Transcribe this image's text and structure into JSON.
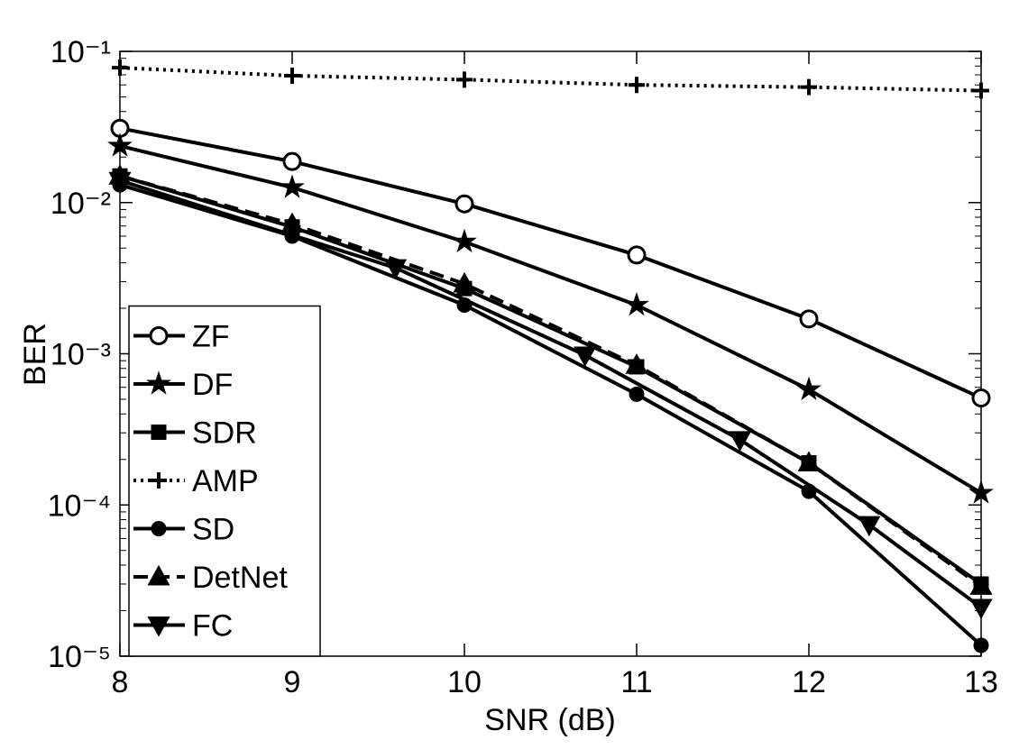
{
  "chart_data": {
    "type": "line",
    "x_label": "SNR (dB)",
    "y_label": "BER",
    "x": [
      8,
      9,
      10,
      11,
      12,
      13
    ],
    "xlim": [
      8,
      13
    ],
    "xticks": [
      8,
      9,
      10,
      11,
      12,
      13
    ],
    "ylim": [
      1e-05,
      0.1
    ],
    "y_log": true,
    "yticks": [
      {
        "value": 1e-05,
        "label": "10⁻⁵"
      },
      {
        "value": 0.0001,
        "label": "10⁻⁴"
      },
      {
        "value": 0.001,
        "label": "10⁻³"
      },
      {
        "value": 0.01,
        "label": "10⁻²"
      },
      {
        "value": 0.1,
        "label": "10⁻¹"
      }
    ],
    "legend": "lower left",
    "series": [
      {
        "name": "ZF",
        "color": "#000000",
        "marker": "circle-open",
        "line_style": "solid",
        "values": [
          0.031,
          0.0187,
          0.0098,
          0.0045,
          0.0017,
          0.00051
        ]
      },
      {
        "name": "DF",
        "color": "#000000",
        "marker": "star",
        "line_style": "solid",
        "values": [
          0.0237,
          0.0126,
          0.0055,
          0.0021,
          0.00058,
          0.00012
        ]
      },
      {
        "name": "SDR",
        "color": "#000000",
        "marker": "square",
        "line_style": "solid",
        "values": [
          0.015,
          0.0069,
          0.0027,
          0.00082,
          0.00019,
          3e-05
        ]
      },
      {
        "name": "AMP",
        "color": "#000000",
        "marker": "plus",
        "line_style": "dotted",
        "values": [
          0.078,
          0.069,
          0.065,
          0.06,
          0.058,
          0.055
        ]
      },
      {
        "name": "SD",
        "color": "#000000",
        "marker": "dot",
        "line_style": "solid",
        "values": [
          0.0131,
          0.006,
          0.0021,
          0.00054,
          0.000123,
          1.18e-05
        ]
      },
      {
        "name": "DetNet",
        "color": "#000000",
        "marker": "triangle-up",
        "line_style": "dashed",
        "values": [
          0.015,
          0.0072,
          0.0029,
          0.00084,
          0.00019,
          2.9e-05
        ]
      },
      {
        "name": "FC",
        "color": "#000000",
        "marker": "triangle-down",
        "line_style": "solid",
        "x": [
          8,
          9.6,
          10.7,
          11.6,
          12.35,
          13
        ],
        "values": [
          0.014,
          0.0037,
          0.00098,
          0.00027,
          7.4e-05,
          2.1e-05
        ]
      }
    ]
  }
}
